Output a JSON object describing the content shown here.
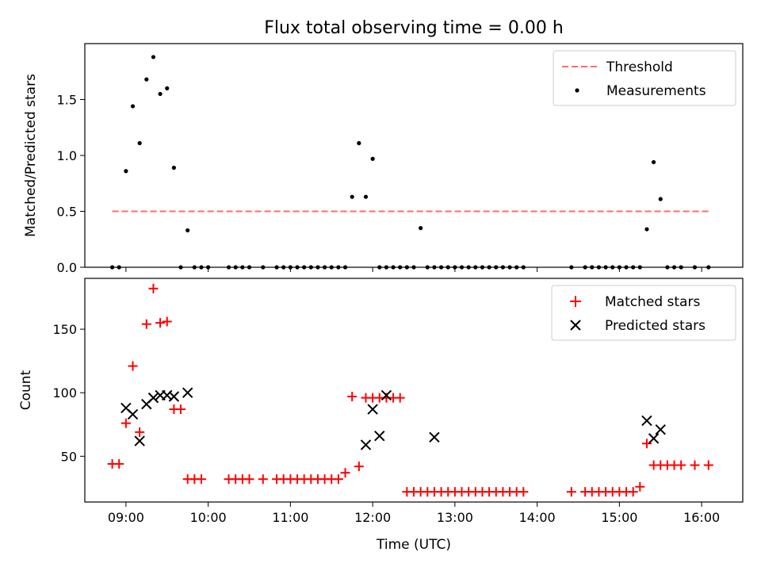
{
  "figure": {
    "title": "Flux total observing time = 0.00 h",
    "xlabel": "Time (UTC)"
  },
  "chart_data": [
    {
      "type": "scatter",
      "ylabel": "Matched/Predicted stars",
      "xlim": [
        "08:30",
        "16:30"
      ],
      "ylim": [
        0,
        2.0
      ],
      "yticks": [
        0.0,
        0.5,
        1.0,
        1.5
      ],
      "ytick_labels": [
        "0.0",
        "0.5",
        "1.0",
        "1.5"
      ],
      "legend_position": "top-right",
      "threshold": {
        "name": "Threshold",
        "value": 0.5,
        "x_range": [
          "08:50",
          "16:07"
        ],
        "color": "#ff6b6b",
        "style": "dashed"
      },
      "series": [
        {
          "name": "Measurements",
          "color": "#000000",
          "marker": "dot",
          "x": [
            "08:50",
            "08:55",
            "09:00",
            "09:05",
            "09:10",
            "09:15",
            "09:20",
            "09:25",
            "09:30",
            "09:35",
            "09:40",
            "09:45",
            "09:50",
            "09:55",
            "10:00",
            "10:15",
            "10:20",
            "10:25",
            "10:30",
            "10:40",
            "10:50",
            "10:55",
            "11:00",
            "11:05",
            "11:10",
            "11:15",
            "11:20",
            "11:25",
            "11:30",
            "11:35",
            "11:40",
            "11:45",
            "11:50",
            "11:55",
            "12:00",
            "12:05",
            "12:10",
            "12:15",
            "12:20",
            "12:25",
            "12:30",
            "12:35",
            "12:40",
            "12:45",
            "12:50",
            "12:55",
            "13:00",
            "13:05",
            "13:10",
            "13:15",
            "13:20",
            "13:25",
            "13:30",
            "13:35",
            "13:40",
            "13:45",
            "13:50",
            "14:25",
            "14:35",
            "14:40",
            "14:45",
            "14:50",
            "14:55",
            "15:00",
            "15:05",
            "15:10",
            "15:15",
            "15:20",
            "15:25",
            "15:30",
            "15:35",
            "15:40",
            "15:45",
            "15:55",
            "16:05"
          ],
          "y": [
            0,
            0,
            0.86,
            1.44,
            1.11,
            1.68,
            1.88,
            1.55,
            1.6,
            0.89,
            0,
            0.33,
            0,
            0,
            0,
            0,
            0,
            0,
            0,
            0,
            0,
            0,
            0,
            0,
            0,
            0,
            0,
            0,
            0,
            0,
            0,
            0.63,
            1.11,
            0.63,
            0.97,
            0,
            0,
            0,
            0,
            0,
            0,
            0.35,
            0,
            0,
            0,
            0,
            0,
            0,
            0,
            0,
            0,
            0,
            0,
            0,
            0,
            0,
            0,
            0,
            0,
            0,
            0,
            0,
            0,
            0,
            0,
            0,
            0,
            0.34,
            0.94,
            0.61,
            0,
            0,
            0,
            0,
            0
          ]
        }
      ]
    },
    {
      "type": "scatter",
      "ylabel": "Count",
      "xlim": [
        "08:30",
        "16:30"
      ],
      "ylim": [
        14,
        190
      ],
      "yticks": [
        50,
        100,
        150
      ],
      "ytick_labels": [
        "50",
        "100",
        "150"
      ],
      "xticks": [
        "09:00",
        "10:00",
        "11:00",
        "12:00",
        "13:00",
        "14:00",
        "15:00",
        "16:00"
      ],
      "xtick_labels": [
        "09:00",
        "10:00",
        "11:00",
        "12:00",
        "13:00",
        "14:00",
        "15:00",
        "16:00"
      ],
      "legend_position": "top-right",
      "series": [
        {
          "name": "Matched stars",
          "color": "#ff0000",
          "marker": "plus",
          "x": [
            "08:50",
            "08:55",
            "09:00",
            "09:05",
            "09:10",
            "09:15",
            "09:20",
            "09:25",
            "09:30",
            "09:35",
            "09:40",
            "09:45",
            "09:50",
            "09:55",
            "10:15",
            "10:20",
            "10:25",
            "10:30",
            "10:40",
            "10:50",
            "10:55",
            "11:00",
            "11:05",
            "11:10",
            "11:15",
            "11:20",
            "11:25",
            "11:30",
            "11:35",
            "11:40",
            "11:45",
            "11:50",
            "11:55",
            "12:00",
            "12:05",
            "12:10",
            "12:15",
            "12:20",
            "12:25",
            "12:30",
            "12:35",
            "12:40",
            "12:45",
            "12:50",
            "12:55",
            "13:00",
            "13:05",
            "13:10",
            "13:15",
            "13:20",
            "13:25",
            "13:30",
            "13:35",
            "13:40",
            "13:45",
            "13:50",
            "14:25",
            "14:35",
            "14:40",
            "14:45",
            "14:50",
            "14:55",
            "15:00",
            "15:05",
            "15:10",
            "15:15",
            "15:20",
            "15:25",
            "15:30",
            "15:35",
            "15:40",
            "15:45",
            "15:55",
            "16:05"
          ],
          "y": [
            44,
            44,
            76,
            121,
            69,
            154,
            182,
            155,
            156,
            87,
            87,
            32,
            32,
            32,
            32,
            32,
            32,
            32,
            32,
            32,
            32,
            32,
            32,
            32,
            32,
            32,
            32,
            32,
            32,
            37,
            97,
            42,
            96,
            96,
            96,
            96,
            96,
            96,
            22,
            22,
            22,
            22,
            22,
            22,
            22,
            22,
            22,
            22,
            22,
            22,
            22,
            22,
            22,
            22,
            22,
            22,
            22,
            22,
            22,
            22,
            22,
            22,
            22,
            22,
            22,
            26,
            60,
            43,
            43,
            43,
            43,
            43,
            43,
            43
          ]
        },
        {
          "name": "Predicted stars",
          "color": "#000000",
          "marker": "x",
          "x": [
            "09:00",
            "09:05",
            "09:10",
            "09:15",
            "09:20",
            "09:25",
            "09:30",
            "09:35",
            "09:45",
            "11:55",
            "12:00",
            "12:05",
            "12:10",
            "12:45",
            "15:20",
            "15:25",
            "15:30"
          ],
          "y": [
            88,
            83,
            62,
            91,
            96,
            98,
            98,
            97,
            100,
            59,
            87,
            66,
            98,
            65,
            78,
            64,
            71
          ]
        }
      ]
    }
  ]
}
